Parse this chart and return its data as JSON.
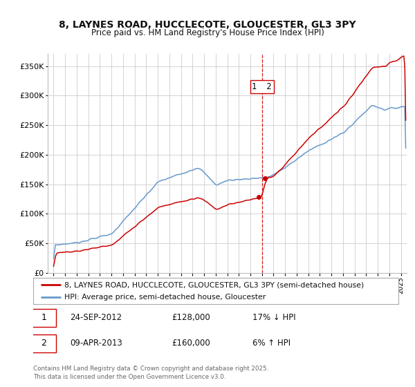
{
  "title": "8, LAYNES ROAD, HUCCLECOTE, GLOUCESTER, GL3 3PY",
  "subtitle": "Price paid vs. HM Land Registry's House Price Index (HPI)",
  "legend_line1": "8, LAYNES ROAD, HUCCLECOTE, GLOUCESTER, GL3 3PY (semi-detached house)",
  "legend_line2": "HPI: Average price, semi-detached house, Gloucester",
  "sale1_date": "24-SEP-2012",
  "sale1_price": "£128,000",
  "sale1_hpi": "17% ↓ HPI",
  "sale2_date": "09-APR-2013",
  "sale2_price": "£160,000",
  "sale2_hpi": "6% ↑ HPI",
  "footer": "Contains HM Land Registry data © Crown copyright and database right 2025.\nThis data is licensed under the Open Government Licence v3.0.",
  "price_color": "#cc0000",
  "hpi_color": "#6699cc",
  "vline_color": "#dd0000",
  "ylim": [
    0,
    370000
  ],
  "yticks": [
    0,
    50000,
    100000,
    150000,
    200000,
    250000,
    300000,
    350000
  ],
  "xlim": [
    1994.5,
    2025.5
  ],
  "background_color": "#ffffff",
  "grid_color": "#cccccc",
  "sale1_year": 2012.73,
  "sale1_price_val": 128000,
  "sale2_year": 2013.27,
  "sale2_price_val": 160000,
  "vline_x": 2013.0
}
